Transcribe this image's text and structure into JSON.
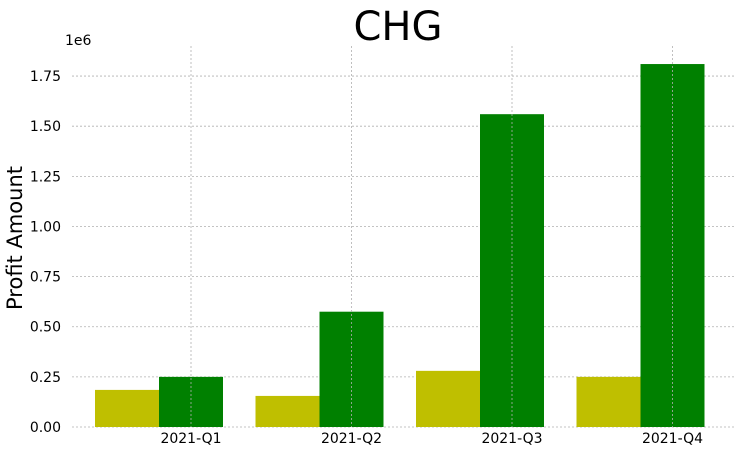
{
  "chart_data": {
    "type": "bar",
    "title": "CHG",
    "xlabel": "",
    "ylabel": "Profit Amount",
    "scale_label": "1e6",
    "categories": [
      "2021-Q1",
      "2021-Q2",
      "2021-Q3",
      "2021-Q4"
    ],
    "series": [
      {
        "color": "#bfbf00",
        "values": [
          185000,
          155000,
          280000,
          250000
        ]
      },
      {
        "color": "#008000",
        "values": [
          250000,
          575000,
          1560000,
          1810000
        ]
      }
    ],
    "ylim": [
      0,
      1900000
    ],
    "yticks": [
      0,
      250000,
      500000,
      750000,
      1000000,
      1250000,
      1500000,
      1750000
    ],
    "ytick_labels": [
      "0.00",
      "0.25",
      "0.50",
      "0.75",
      "1.00",
      "1.25",
      "1.50",
      "1.75"
    ],
    "grid": true,
    "legend": "none"
  }
}
